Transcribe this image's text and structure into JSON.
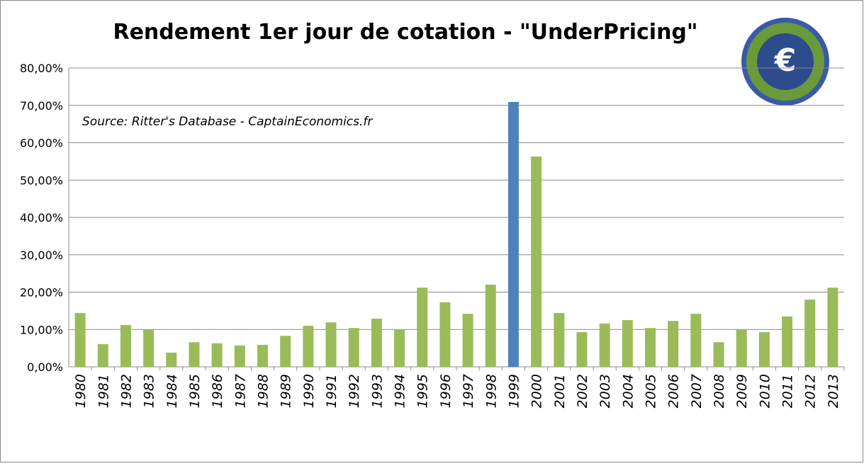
{
  "chart_data": {
    "type": "bar",
    "title": "Rendement 1er jour de cotation - \"UnderPricing\"",
    "annotation": "Source: Ritter's Database - CaptainEconomics.fr",
    "categories": [
      "1980",
      "1981",
      "1982",
      "1983",
      "1984",
      "1985",
      "1986",
      "1987",
      "1988",
      "1989",
      "1990",
      "1991",
      "1992",
      "1993",
      "1994",
      "1995",
      "1996",
      "1997",
      "1998",
      "1999",
      "2000",
      "2001",
      "2002",
      "2003",
      "2004",
      "2005",
      "2006",
      "2007",
      "2008",
      "2009",
      "2010",
      "2011",
      "2012",
      "2013"
    ],
    "values": [
      14.4,
      6.1,
      11.2,
      10.0,
      3.8,
      6.6,
      6.3,
      5.7,
      5.9,
      8.3,
      11.0,
      11.9,
      10.4,
      12.9,
      9.9,
      21.2,
      17.3,
      14.2,
      22.0,
      70.9,
      56.3,
      14.4,
      9.3,
      11.6,
      12.5,
      10.4,
      12.3,
      14.2,
      6.6,
      9.9,
      9.3,
      13.5,
      18.0,
      21.2
    ],
    "colors": [
      "#9bbb59",
      "#9bbb59",
      "#9bbb59",
      "#9bbb59",
      "#9bbb59",
      "#9bbb59",
      "#9bbb59",
      "#9bbb59",
      "#9bbb59",
      "#9bbb59",
      "#9bbb59",
      "#9bbb59",
      "#9bbb59",
      "#9bbb59",
      "#9bbb59",
      "#9bbb59",
      "#9bbb59",
      "#9bbb59",
      "#9bbb59",
      "#4f81bd",
      "#9bbb59",
      "#9bbb59",
      "#9bbb59",
      "#9bbb59",
      "#9bbb59",
      "#9bbb59",
      "#9bbb59",
      "#9bbb59",
      "#9bbb59",
      "#9bbb59",
      "#9bbb59",
      "#9bbb59",
      "#9bbb59",
      "#9bbb59"
    ],
    "ylim": [
      0,
      80
    ],
    "yticks": [
      {
        "value": 0,
        "label": "0,00%"
      },
      {
        "value": 10,
        "label": "10,00%"
      },
      {
        "value": 20,
        "label": "20,00%"
      },
      {
        "value": 30,
        "label": "30,00%"
      },
      {
        "value": 40,
        "label": "40,00%"
      },
      {
        "value": 50,
        "label": "50,00%"
      },
      {
        "value": 60,
        "label": "60,00%"
      },
      {
        "value": 70,
        "label": "70,00%"
      },
      {
        "value": 80,
        "label": "80,00%"
      }
    ],
    "grid": true
  }
}
